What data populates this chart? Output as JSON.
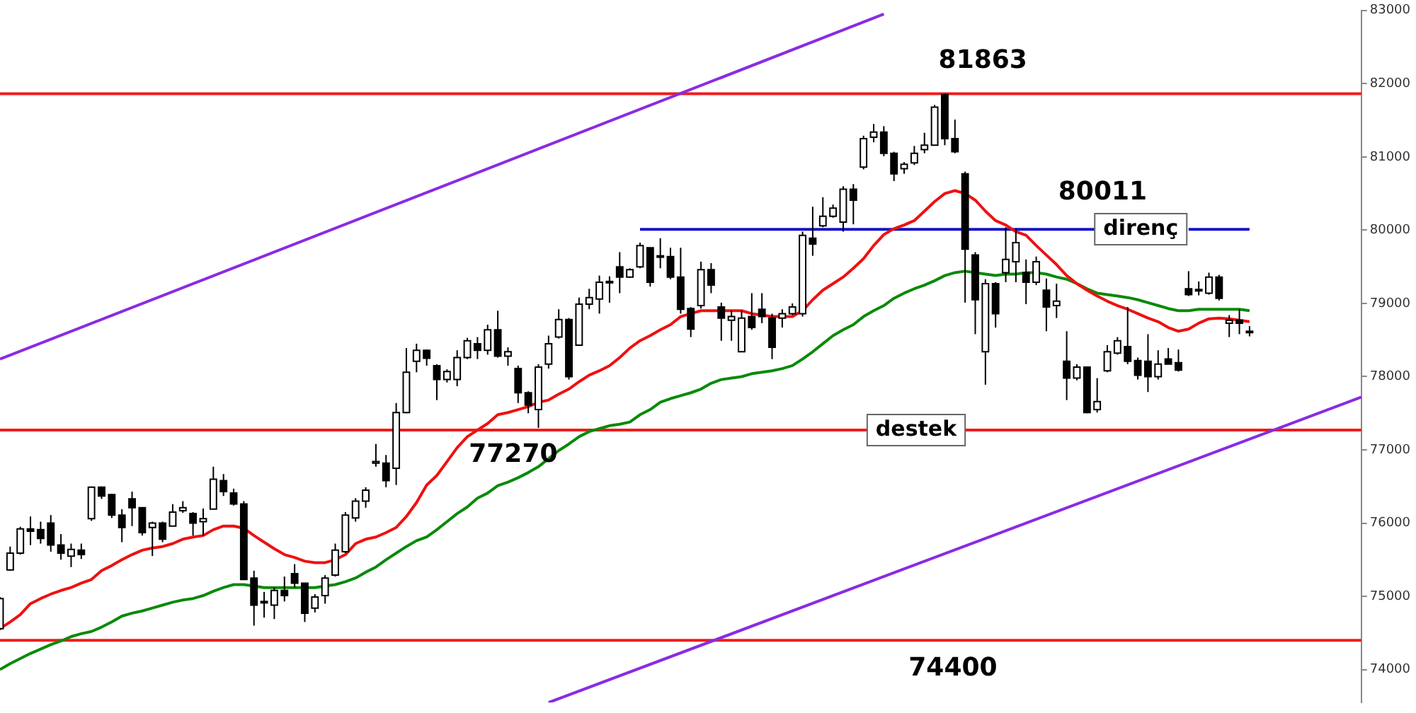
{
  "chart_data": {
    "type": "candlestick",
    "categories": [
      null,
      null,
      null,
      null,
      null,
      null,
      null,
      null,
      null,
      null,
      null,
      null,
      null,
      null,
      null,
      null,
      null,
      null,
      null,
      null,
      null,
      null,
      null,
      null,
      null,
      null,
      null,
      null,
      null,
      null,
      null,
      null,
      null,
      null,
      null,
      null,
      null,
      null,
      null,
      null,
      null,
      null,
      null,
      null,
      null,
      null,
      null,
      null,
      null,
      null,
      null,
      null,
      null,
      null,
      null,
      null,
      null,
      null,
      null,
      null,
      null,
      null,
      null,
      null,
      null,
      null,
      null,
      null,
      null,
      null,
      null,
      null,
      null,
      null,
      null,
      null,
      null,
      null,
      null,
      null,
      null,
      null,
      null,
      null,
      null,
      null,
      null,
      null,
      null,
      null,
      null,
      null,
      null,
      null,
      null,
      null,
      null,
      null,
      null,
      null,
      null,
      null,
      null,
      null,
      null,
      null,
      null,
      null,
      null,
      null,
      null,
      null,
      null,
      null,
      null,
      null,
      null,
      null,
      null,
      null,
      null,
      null,
      null,
      null,
      null,
      null,
      null,
      null,
      null,
      null,
      null,
      null,
      null,
      null,
      null
    ],
    "ohlc": [
      [
        74560,
        74990,
        74540,
        74970
      ],
      [
        75360,
        75680,
        75350,
        75590
      ],
      [
        75590,
        75950,
        75570,
        75920
      ],
      [
        75920,
        76090,
        75700,
        75890
      ],
      [
        75910,
        76020,
        75720,
        75790
      ],
      [
        76000,
        76110,
        75610,
        75700
      ],
      [
        75700,
        75850,
        75500,
        75590
      ],
      [
        75550,
        75720,
        75400,
        75640
      ],
      [
        75630,
        75720,
        75510,
        75570
      ],
      [
        76060,
        76500,
        76030,
        76490
      ],
      [
        76490,
        76500,
        76330,
        76370
      ],
      [
        76390,
        76400,
        76070,
        76110
      ],
      [
        76110,
        76190,
        75740,
        75940
      ],
      [
        76330,
        76430,
        75960,
        76210
      ],
      [
        76210,
        76210,
        75830,
        75870
      ],
      [
        75940,
        76020,
        75550,
        76000
      ],
      [
        76000,
        76020,
        75740,
        75780
      ],
      [
        75960,
        76260,
        75960,
        76150
      ],
      [
        76170,
        76300,
        76140,
        76210
      ],
      [
        76130,
        76150,
        75830,
        76000
      ],
      [
        76020,
        76200,
        75830,
        76060
      ],
      [
        76190,
        76770,
        76190,
        76600
      ],
      [
        76580,
        76670,
        76370,
        76430
      ],
      [
        76410,
        76470,
        76240,
        76260
      ],
      [
        76260,
        76300,
        75230,
        75230
      ],
      [
        75250,
        75350,
        74600,
        74880
      ],
      [
        74930,
        75060,
        74710,
        74920
      ],
      [
        74880,
        75120,
        74690,
        75080
      ],
      [
        75080,
        75270,
        74930,
        75010
      ],
      [
        75310,
        75440,
        75120,
        75180
      ],
      [
        75180,
        75180,
        74650,
        74770
      ],
      [
        74840,
        75030,
        74780,
        74990
      ],
      [
        75010,
        75290,
        74900,
        75250
      ],
      [
        75290,
        75720,
        75270,
        75630
      ],
      [
        75610,
        76150,
        75590,
        76110
      ],
      [
        76070,
        76340,
        76020,
        76300
      ],
      [
        76300,
        76490,
        76210,
        76450
      ],
      [
        76820,
        77080,
        76770,
        76840
      ],
      [
        76820,
        76930,
        76490,
        76580
      ],
      [
        76750,
        77640,
        76520,
        77510
      ],
      [
        77510,
        78390,
        77500,
        78060
      ],
      [
        78210,
        78450,
        78060,
        78360
      ],
      [
        78360,
        78370,
        78150,
        78250
      ],
      [
        78150,
        78170,
        77680,
        77960
      ],
      [
        77960,
        78100,
        77920,
        78070
      ],
      [
        77960,
        78360,
        77870,
        78260
      ],
      [
        78260,
        78530,
        78240,
        78490
      ],
      [
        78450,
        78540,
        78240,
        78360
      ],
      [
        78360,
        78710,
        78300,
        78640
      ],
      [
        78640,
        78900,
        78260,
        78280
      ],
      [
        78280,
        78400,
        78150,
        78340
      ],
      [
        78110,
        78150,
        77640,
        77780
      ],
      [
        77780,
        77800,
        77500,
        77610
      ],
      [
        77550,
        78170,
        77300,
        78130
      ],
      [
        78170,
        78560,
        78110,
        78450
      ],
      [
        78540,
        78920,
        78520,
        78780
      ],
      [
        78780,
        78800,
        77960,
        78000
      ],
      [
        78430,
        79080,
        78430,
        78990
      ],
      [
        78990,
        79200,
        78920,
        79080
      ],
      [
        79060,
        79380,
        78860,
        79290
      ],
      [
        79290,
        79370,
        79010,
        79300
      ],
      [
        79500,
        79700,
        79140,
        79360
      ],
      [
        79360,
        79480,
        79350,
        79460
      ],
      [
        79500,
        79830,
        79480,
        79790
      ],
      [
        79760,
        79760,
        79230,
        79290
      ],
      [
        79650,
        79890,
        79480,
        79640
      ],
      [
        79640,
        79760,
        79330,
        79360
      ],
      [
        79360,
        79760,
        78860,
        78920
      ],
      [
        78930,
        78950,
        78540,
        78650
      ],
      [
        78970,
        79570,
        78930,
        79460
      ],
      [
        79460,
        79550,
        79140,
        79250
      ],
      [
        78950,
        79010,
        78490,
        78800
      ],
      [
        78770,
        78900,
        78490,
        78820
      ],
      [
        78340,
        78900,
        78340,
        78800
      ],
      [
        78820,
        79140,
        78640,
        78670
      ],
      [
        78920,
        79140,
        78730,
        78820
      ],
      [
        78800,
        78860,
        78240,
        78400
      ],
      [
        78800,
        78920,
        78670,
        78860
      ],
      [
        78860,
        79000,
        78840,
        78950
      ],
      [
        78860,
        79980,
        78820,
        79930
      ],
      [
        79890,
        80320,
        79650,
        79810
      ],
      [
        80060,
        80450,
        80040,
        80190
      ],
      [
        80190,
        80350,
        80170,
        80300
      ],
      [
        80110,
        80600,
        79980,
        80560
      ],
      [
        80560,
        80630,
        80080,
        80410
      ],
      [
        80860,
        81290,
        80830,
        81250
      ],
      [
        81270,
        81450,
        81200,
        81340
      ],
      [
        81340,
        81420,
        81010,
        81050
      ],
      [
        81050,
        81070,
        80670,
        80770
      ],
      [
        80840,
        80930,
        80770,
        80900
      ],
      [
        80920,
        81150,
        80890,
        81050
      ],
      [
        81100,
        81330,
        81050,
        81160
      ],
      [
        81160,
        81710,
        81160,
        81680
      ],
      [
        81850,
        81863,
        81160,
        81250
      ],
      [
        81250,
        81510,
        81050,
        81070
      ],
      [
        80770,
        80800,
        79010,
        79740
      ],
      [
        79660,
        79700,
        78580,
        79050
      ],
      [
        78340,
        79330,
        77890,
        79270
      ],
      [
        79270,
        79290,
        78670,
        78860
      ],
      [
        79420,
        80040,
        79290,
        79600
      ],
      [
        79570,
        80020,
        79290,
        79830
      ],
      [
        79420,
        79600,
        78990,
        79290
      ],
      [
        79290,
        79640,
        79250,
        79570
      ],
      [
        79180,
        79340,
        78620,
        78950
      ],
      [
        78970,
        79270,
        78800,
        79030
      ],
      [
        78210,
        78620,
        77680,
        77980
      ],
      [
        77980,
        78170,
        77950,
        78130
      ],
      [
        78130,
        78130,
        77500,
        77510
      ],
      [
        77550,
        77980,
        77510,
        77660
      ],
      [
        78080,
        78430,
        78060,
        78340
      ],
      [
        78320,
        78540,
        78300,
        78490
      ],
      [
        78410,
        78950,
        78170,
        78210
      ],
      [
        78220,
        78260,
        77960,
        78020
      ],
      [
        78210,
        78580,
        77790,
        78000
      ],
      [
        78000,
        78360,
        77960,
        78170
      ],
      [
        78240,
        78390,
        78170,
        78170
      ],
      [
        78190,
        78370,
        78070,
        78090
      ],
      [
        79200,
        79440,
        79100,
        79120
      ],
      [
        79180,
        79300,
        79110,
        79190
      ],
      [
        79140,
        79420,
        79120,
        79360
      ],
      [
        79360,
        79390,
        79040,
        79070
      ],
      [
        78730,
        78840,
        78540,
        78770
      ],
      [
        78770,
        78920,
        78580,
        78730
      ],
      [
        78620,
        78690,
        78550,
        78620
      ],
      null,
      null,
      null,
      null,
      null,
      null,
      null,
      null,
      null,
      null,
      null
    ],
    "series": [
      {
        "type": "line",
        "color": "#ee1111",
        "values": [
          74560,
          74650,
          74750,
          74900,
          74970,
          75030,
          75080,
          75120,
          75180,
          75230,
          75350,
          75420,
          75500,
          75570,
          75630,
          75660,
          75680,
          75720,
          75780,
          75810,
          75830,
          75910,
          75960,
          75960,
          75930,
          75830,
          75740,
          75650,
          75570,
          75530,
          75480,
          75460,
          75460,
          75500,
          75570,
          75720,
          75780,
          75810,
          75870,
          75940,
          76090,
          76280,
          76520,
          76650,
          76840,
          77030,
          77180,
          77270,
          77360,
          77480,
          77510,
          77550,
          77590,
          77650,
          77680,
          77760,
          77830,
          77930,
          78020,
          78080,
          78150,
          78260,
          78390,
          78490,
          78560,
          78640,
          78710,
          78820,
          78860,
          78900,
          78900,
          78900,
          78900,
          78900,
          78860,
          78840,
          78820,
          78820,
          78820,
          78900,
          79050,
          79180,
          79270,
          79360,
          79480,
          79610,
          79790,
          79940,
          80020,
          80070,
          80130,
          80260,
          80390,
          80500,
          80540,
          80500,
          80410,
          80260,
          80130,
          80070,
          79980,
          79930,
          79790,
          79660,
          79530,
          79380,
          79270,
          79180,
          79100,
          79030,
          78970,
          78920,
          78860,
          78800,
          78750,
          78670,
          78620,
          78650,
          78730,
          78790,
          78800,
          78790,
          78770,
          78750,
          null,
          null,
          null,
          null,
          null,
          null,
          null,
          null,
          null,
          null,
          null
        ]
      },
      {
        "type": "line",
        "color": "#0a8a0a",
        "values": [
          74000,
          74080,
          74150,
          74220,
          74280,
          74340,
          74390,
          74450,
          74490,
          74520,
          74580,
          74650,
          74730,
          74770,
          74800,
          74840,
          74880,
          74920,
          74950,
          74970,
          75010,
          75070,
          75120,
          75160,
          75160,
          75140,
          75120,
          75120,
          75120,
          75120,
          75120,
          75120,
          75140,
          75160,
          75200,
          75250,
          75330,
          75400,
          75500,
          75590,
          75680,
          75760,
          75810,
          75910,
          76020,
          76130,
          76220,
          76340,
          76410,
          76510,
          76560,
          76620,
          76690,
          76770,
          76880,
          76990,
          77080,
          77180,
          77250,
          77290,
          77330,
          77350,
          77380,
          77480,
          77550,
          77650,
          77700,
          77740,
          77780,
          77830,
          77910,
          77960,
          77980,
          78000,
          78040,
          78060,
          78080,
          78110,
          78150,
          78240,
          78340,
          78450,
          78560,
          78640,
          78710,
          78820,
          78900,
          78970,
          79070,
          79140,
          79200,
          79250,
          79310,
          79380,
          79420,
          79440,
          79420,
          79400,
          79380,
          79400,
          79400,
          79420,
          79420,
          79400,
          79360,
          79330,
          79270,
          79200,
          79140,
          79120,
          79100,
          79080,
          79050,
          79010,
          78970,
          78930,
          78900,
          78900,
          78920,
          78920,
          78920,
          78920,
          78920,
          78900,
          null,
          null,
          null,
          null,
          null,
          null,
          null,
          null,
          null,
          null,
          null
        ]
      },
      {
        "type": "line",
        "color": "#1414c8",
        "values": [
          null,
          null,
          null,
          null,
          null,
          null,
          null,
          null,
          null,
          null,
          null,
          null,
          null,
          null,
          null,
          null,
          null,
          null,
          null,
          null,
          null,
          null,
          null,
          null,
          null,
          null,
          null,
          null,
          null,
          null,
          null,
          null,
          null,
          null,
          null,
          null,
          null,
          null,
          null,
          null,
          null,
          null,
          null,
          null,
          null,
          null,
          null,
          null,
          null,
          null,
          null,
          null,
          null,
          null,
          null,
          null,
          null,
          null,
          null,
          null,
          null,
          null,
          null,
          80011,
          80011,
          80011,
          80011,
          80011,
          80011,
          80011,
          80011,
          80011,
          80011,
          80011,
          80011,
          80011,
          80011,
          80011,
          80011,
          80011,
          80011,
          80011,
          80011,
          80011,
          80011,
          80011,
          80011,
          80011,
          80011,
          80011,
          80011,
          80011,
          80011,
          80011,
          80011,
          80011,
          80011,
          80011,
          80011,
          80011,
          80011,
          80011,
          80011,
          80011,
          80011,
          80011,
          80011,
          80011,
          80011,
          null,
          null,
          null,
          null,
          null,
          null,
          null,
          null,
          80011,
          80011,
          80011,
          80011,
          80011,
          80011,
          80011,
          null,
          null,
          null,
          null,
          null,
          null,
          null,
          null,
          null,
          null,
          null
        ]
      },
      {
        "type": "line",
        "color": "#8a2be2",
        "values": [
          78240,
          null,
          null,
          null,
          null,
          null,
          null,
          null,
          null,
          null,
          null,
          null,
          null,
          null,
          null,
          null,
          null,
          null,
          null,
          null,
          null,
          null,
          null,
          null,
          null,
          null,
          null,
          null,
          null,
          null,
          null,
          null,
          null,
          null,
          null,
          null,
          null,
          null,
          null,
          null,
          null,
          null,
          null,
          null,
          null,
          null,
          null,
          null,
          null,
          null,
          null,
          null,
          null,
          null,
          null,
          null,
          null,
          null,
          null,
          null,
          null,
          null,
          null,
          null,
          null,
          null,
          null,
          null,
          null,
          null,
          null,
          null,
          null,
          null,
          null,
          null,
          null,
          null,
          null,
          null,
          null,
          null,
          null,
          null,
          null,
          null,
          null,
          82950,
          null,
          null,
          null,
          null,
          null,
          null,
          null,
          null,
          null,
          null,
          null,
          null,
          null,
          null,
          null,
          null,
          null,
          null,
          null,
          null,
          null,
          null,
          null,
          null,
          null,
          null,
          null,
          null,
          null,
          null,
          null,
          null,
          null,
          null,
          null,
          null,
          null,
          null,
          null,
          null,
          null,
          null,
          null,
          null,
          null,
          null,
          null
        ]
      },
      {
        "type": "line",
        "color": "#8a2be2",
        "values": [
          null,
          null,
          null,
          null,
          null,
          null,
          null,
          null,
          null,
          null,
          null,
          null,
          null,
          null,
          null,
          null,
          null,
          null,
          null,
          null,
          null,
          null,
          null,
          null,
          null,
          null,
          null,
          null,
          null,
          null,
          null,
          null,
          null,
          null,
          null,
          null,
          null,
          null,
          null,
          null,
          null,
          null,
          null,
          null,
          null,
          null,
          null,
          null,
          null,
          null,
          null,
          null,
          null,
          null,
          73550,
          null,
          null,
          null,
          null,
          null,
          null,
          null,
          null,
          null,
          null,
          null,
          null,
          null,
          null,
          null,
          null,
          null,
          null,
          null,
          null,
          null,
          null,
          null,
          null,
          null,
          null,
          null,
          null,
          null,
          null,
          null,
          null,
          null,
          null,
          null,
          null,
          null,
          null,
          null,
          null,
          null,
          null,
          null,
          null,
          null,
          null,
          null,
          null,
          null,
          null,
          null,
          null,
          null,
          null,
          null,
          null,
          null,
          null,
          null,
          null,
          null,
          null,
          null,
          null,
          null,
          null,
          null,
          null,
          null,
          null,
          null,
          null,
          null,
          null,
          null,
          null,
          null,
          null,
          null,
          77720
        ]
      }
    ],
    "ref_lines": [
      {
        "axis": "y",
        "value": 81863,
        "label": "81863",
        "color": "#ee1c1c"
      },
      {
        "axis": "y",
        "value": 77270,
        "label": "77270",
        "color": "#ee1c1c"
      },
      {
        "axis": "y",
        "value": 74400,
        "label": "74400",
        "color": "#ee1c1c"
      }
    ],
    "annotations": [
      {
        "text": "80011",
        "y": 80011
      },
      "direnç",
      {
        "text": "destek",
        "y": 77270
      }
    ],
    "ylim": [
      73550,
      83000
    ],
    "yticks": [
      74000,
      75000,
      76000,
      77000,
      78000,
      79000,
      80000,
      81000,
      82000,
      83000
    ],
    "marker": "none",
    "legend": false
  }
}
